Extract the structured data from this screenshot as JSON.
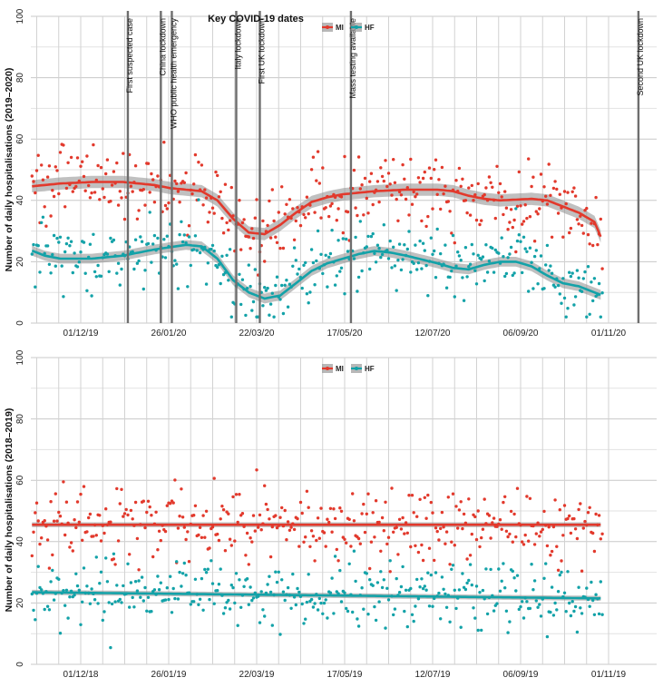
{
  "chart_data": [
    {
      "type": "scatter",
      "title": "Key COVID-19 dates",
      "ylabel": "Number of daily hospitalisations (2019–2020)",
      "xlabel": "",
      "ylim": [
        0,
        100
      ],
      "y_ticks": [
        "0",
        "20",
        "40",
        "60",
        "80",
        "100"
      ],
      "x_tick_labels": [
        "01/12/19",
        "26/01/20",
        "22/03/20",
        "17/05/20",
        "12/07/20",
        "06/09/20",
        "01/11/20"
      ],
      "x_range_days": [
        0,
        365
      ],
      "x_tick_days": [
        33,
        89,
        145,
        201,
        257,
        313,
        369
      ],
      "grid": true,
      "legend": {
        "placement": "top-right",
        "items": [
          "MI",
          "HF"
        ]
      },
      "events": [
        {
          "label": "First suspected case",
          "day": 63
        },
        {
          "label": "China lockdown",
          "day": 84
        },
        {
          "label": "WHO public health emergency",
          "day": 91
        },
        {
          "label": "Italy lockdown",
          "day": 132
        },
        {
          "label": "First UK lockdown",
          "day": 147
        },
        {
          "label": "Mass testing available",
          "day": 205
        },
        {
          "label": "Second UK lockdown",
          "day": 388
        }
      ],
      "series": [
        {
          "name": "MI",
          "color": "#e2392c",
          "trend": [
            [
              0,
              44.5
            ],
            [
              20,
              45.5
            ],
            [
              40,
              46
            ],
            [
              60,
              46
            ],
            [
              80,
              45
            ],
            [
              90,
              44
            ],
            [
              100,
              43.5
            ],
            [
              110,
              43
            ],
            [
              120,
              40
            ],
            [
              130,
              34
            ],
            [
              140,
              29.5
            ],
            [
              150,
              29
            ],
            [
              160,
              32
            ],
            [
              170,
              36
            ],
            [
              180,
              39.5
            ],
            [
              190,
              41
            ],
            [
              200,
              42
            ],
            [
              210,
              42.5
            ],
            [
              220,
              43
            ],
            [
              240,
              43.5
            ],
            [
              260,
              43.5
            ],
            [
              270,
              43
            ],
            [
              280,
              41.5
            ],
            [
              290,
              40.5
            ],
            [
              300,
              40
            ],
            [
              320,
              40.5
            ],
            [
              330,
              40
            ],
            [
              340,
              38
            ],
            [
              350,
              36
            ],
            [
              360,
              33
            ],
            [
              365,
              27
            ]
          ],
          "ci_halfwidth": 2
        },
        {
          "name": "HF",
          "color": "#13a2a8",
          "trend": [
            [
              0,
              24
            ],
            [
              10,
              22
            ],
            [
              20,
              21
            ],
            [
              40,
              21
            ],
            [
              60,
              22
            ],
            [
              80,
              24
            ],
            [
              100,
              25.5
            ],
            [
              110,
              25
            ],
            [
              120,
              21
            ],
            [
              130,
              14
            ],
            [
              140,
              10
            ],
            [
              150,
              8
            ],
            [
              160,
              9
            ],
            [
              170,
              13
            ],
            [
              180,
              17
            ],
            [
              190,
              19.5
            ],
            [
              200,
              21
            ],
            [
              210,
              22.5
            ],
            [
              220,
              23.5
            ],
            [
              230,
              23
            ],
            [
              240,
              22
            ],
            [
              260,
              19.5
            ],
            [
              270,
              18
            ],
            [
              280,
              17.5
            ],
            [
              290,
              19
            ],
            [
              300,
              20
            ],
            [
              310,
              20
            ],
            [
              320,
              18.5
            ],
            [
              330,
              15.5
            ],
            [
              340,
              13
            ],
            [
              350,
              12
            ],
            [
              360,
              10
            ],
            [
              365,
              9
            ]
          ],
          "ci_halfwidth": 1.6
        }
      ]
    },
    {
      "type": "scatter",
      "title": "",
      "ylabel": "Number of daily hospitalisations (2018–2019)",
      "xlabel": "",
      "ylim": [
        0,
        100
      ],
      "y_ticks": [
        "0",
        "20",
        "40",
        "60",
        "80",
        "100"
      ],
      "x_tick_labels": [
        "01/12/18",
        "26/01/19",
        "22/03/19",
        "17/05/19",
        "12/07/19",
        "06/09/19",
        "01/11/19"
      ],
      "x_range_days": [
        0,
        365
      ],
      "x_tick_days": [
        33,
        89,
        145,
        201,
        257,
        313,
        369
      ],
      "grid": true,
      "legend": {
        "placement": "top-right",
        "items": [
          "MI",
          "HF"
        ]
      },
      "events": [],
      "series": [
        {
          "name": "MI",
          "color": "#e2392c",
          "trend": [
            [
              0,
              45.5
            ],
            [
              365,
              45.5
            ]
          ],
          "ci_halfwidth": 0.8
        },
        {
          "name": "HF",
          "color": "#13a2a8",
          "trend": [
            [
              0,
              23.5
            ],
            [
              365,
              21.5
            ]
          ],
          "ci_halfwidth": 0.8
        }
      ]
    }
  ]
}
